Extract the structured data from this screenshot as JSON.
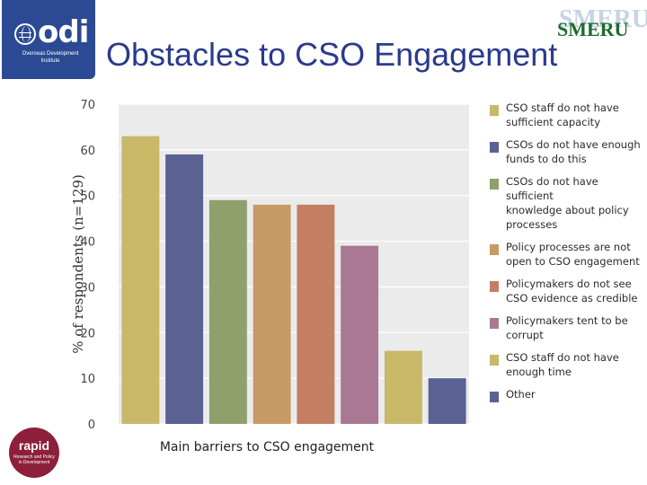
{
  "title": "Obstacles to CSO Engagement",
  "logos": {
    "odi": {
      "word": "odi",
      "subtitle": "Overseas Development Institute"
    },
    "rapid": {
      "word": "rapid",
      "subtitle": "Research and Policy in Development"
    },
    "smeru": {
      "word": "SMERU"
    }
  },
  "chart_data": {
    "type": "bar",
    "categories": [
      "CSO staff do not have sufficient capacity",
      "CSOs do not have enough funds to do this",
      "CSOs do not have sufficient knowledge about policy processes",
      "Policy processes are not open to CSO engagement",
      "Policymakers do not see CSO evidence as credible",
      "Policymakers tent to be corrupt",
      "CSO staff do not have enough time",
      "Other"
    ],
    "values": [
      63,
      59,
      49,
      48,
      48,
      39,
      16,
      10
    ],
    "colors": [
      "#c8b868",
      "#5a6193",
      "#8fa06b",
      "#c89a66",
      "#c47e62",
      "#a97892",
      "#c8b868",
      "#5a6193"
    ],
    "ylabel": "% of respondents (n=129)",
    "xlabel": "Main barriers to CSO engagement",
    "ylim": [
      0,
      70
    ],
    "yticks": [
      0,
      10,
      20,
      30,
      40,
      50,
      60,
      70
    ],
    "grid": true,
    "legend_position": "right"
  },
  "legend": [
    {
      "lines": [
        "CSO staff do not have",
        "sufficient capacity"
      ],
      "color": "#c8b868"
    },
    {
      "lines": [
        "CSOs do not have enough",
        "funds to do this"
      ],
      "color": "#5a6193"
    },
    {
      "lines": [
        "CSOs do not have sufficient",
        "knowledge about policy",
        "processes"
      ],
      "color": "#8fa06b"
    },
    {
      "lines": [
        "Policy processes are not",
        "open to CSO engagement"
      ],
      "color": "#c89a66"
    },
    {
      "lines": [
        "Policymakers do not see",
        "CSO evidence as credible"
      ],
      "color": "#c47e62"
    },
    {
      "lines": [
        "Policymakers tent to be",
        "corrupt"
      ],
      "color": "#a97892"
    },
    {
      "lines": [
        "CSO staff do not have",
        "enough time"
      ],
      "color": "#c8b868"
    },
    {
      "lines": [
        "Other"
      ],
      "color": "#5a6193"
    }
  ]
}
